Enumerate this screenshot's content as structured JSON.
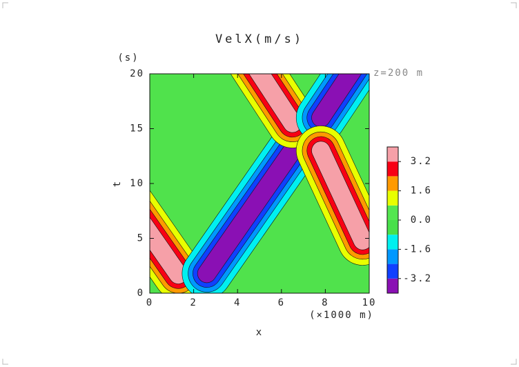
{
  "chart_data": {
    "type": "contour",
    "title": "VelX(m/s)",
    "xlabel": "x",
    "ylabel": "t",
    "x_unit": "(×1000 m)",
    "y_unit": "(s)",
    "annotation": "z=200 m",
    "xlim": [
      0,
      10
    ],
    "ylim": [
      0,
      20
    ],
    "xticks": [
      0,
      2,
      4,
      6,
      8,
      10
    ],
    "yticks": [
      0,
      5,
      10,
      15,
      20
    ],
    "background_color": "#50e24c",
    "levels": [
      -4,
      -3.2,
      -2.4,
      -1.6,
      -0.8,
      0,
      0.8,
      1.6,
      2.4,
      3.2,
      4
    ],
    "colors": [
      "#8a10b4",
      "#1040ff",
      "#0098ff",
      "#00f0f0",
      "#48e04a",
      "#54e650",
      "#e8ff00",
      "#ff9a00",
      "#f80014",
      "#f6a0a8"
    ],
    "colorbar_ticks": [
      3.2,
      1.6,
      {
        "value": 0,
        "label": "0.0"
      },
      -1.6,
      -3.2
    ],
    "features": [
      {
        "start": [
          -1,
          8.3
        ],
        "end": [
          1.3,
          1.7
        ],
        "amplitude": 4
      },
      {
        "start": [
          2.6,
          1.8
        ],
        "end": [
          6.5,
          13.0
        ],
        "amplitude": -4
      },
      {
        "start": [
          4.7,
          21
        ],
        "end": [
          6.5,
          15.5
        ],
        "amplitude": 4
      },
      {
        "start": [
          7.8,
          16.0
        ],
        "end": [
          9.8,
          22
        ],
        "amplitude": -4
      },
      {
        "start": [
          7.8,
          13.0
        ],
        "end": [
          9.7,
          4.8
        ],
        "amplitude": 4
      }
    ]
  }
}
